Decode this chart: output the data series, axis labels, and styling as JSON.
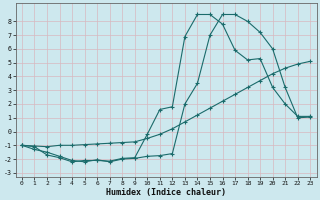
{
  "xlabel": "Humidex (Indice chaleur)",
  "bg_color": "#cde8ee",
  "grid_color": "#b8d8e0",
  "line_color": "#1a6b6b",
  "xlim": [
    -0.5,
    23.5
  ],
  "ylim": [
    -3.3,
    9.3
  ],
  "xticks": [
    0,
    1,
    2,
    3,
    4,
    5,
    6,
    7,
    8,
    9,
    10,
    11,
    12,
    13,
    14,
    15,
    16,
    17,
    18,
    19,
    20,
    21,
    22,
    23
  ],
  "yticks": [
    -3,
    -2,
    -1,
    0,
    1,
    2,
    3,
    4,
    5,
    6,
    7,
    8
  ],
  "line1_x": [
    0,
    1,
    2,
    3,
    4,
    5,
    6,
    7,
    8,
    9,
    10,
    11,
    12,
    13,
    14,
    15,
    16,
    17,
    18,
    19,
    20,
    21,
    22,
    23
  ],
  "line1_y": [
    -1.0,
    -1.05,
    -1.1,
    -1.0,
    -1.0,
    -0.95,
    -0.9,
    -0.85,
    -0.8,
    -0.75,
    -0.5,
    -0.2,
    0.2,
    0.7,
    1.2,
    1.7,
    2.2,
    2.7,
    3.2,
    3.7,
    4.2,
    4.6,
    4.9,
    5.1
  ],
  "line2_x": [
    0,
    1,
    2,
    3,
    4,
    5,
    6,
    7,
    8,
    9,
    10,
    11,
    12,
    13,
    14,
    15,
    16,
    17,
    18,
    19,
    20,
    21,
    22,
    23
  ],
  "line2_y": [
    -1.0,
    -1.3,
    -1.5,
    -1.8,
    -2.1,
    -2.2,
    -2.05,
    -2.2,
    -2.0,
    -1.95,
    -1.8,
    -1.75,
    -1.6,
    2.0,
    3.5,
    7.0,
    8.5,
    8.5,
    8.0,
    7.2,
    6.0,
    3.2,
    1.0,
    1.05
  ],
  "line3_x": [
    0,
    1,
    2,
    3,
    4,
    5,
    6,
    7,
    8,
    9,
    10,
    11,
    12,
    13,
    14,
    15,
    16,
    17,
    18,
    19,
    20,
    21,
    22,
    23
  ],
  "line3_y": [
    -1.0,
    -1.1,
    -1.7,
    -1.9,
    -2.2,
    -2.1,
    -2.1,
    -2.15,
    -1.95,
    -1.9,
    -0.2,
    1.6,
    1.8,
    6.9,
    8.5,
    8.5,
    7.8,
    5.9,
    5.2,
    5.3,
    3.2,
    2.0,
    1.1,
    1.1
  ]
}
